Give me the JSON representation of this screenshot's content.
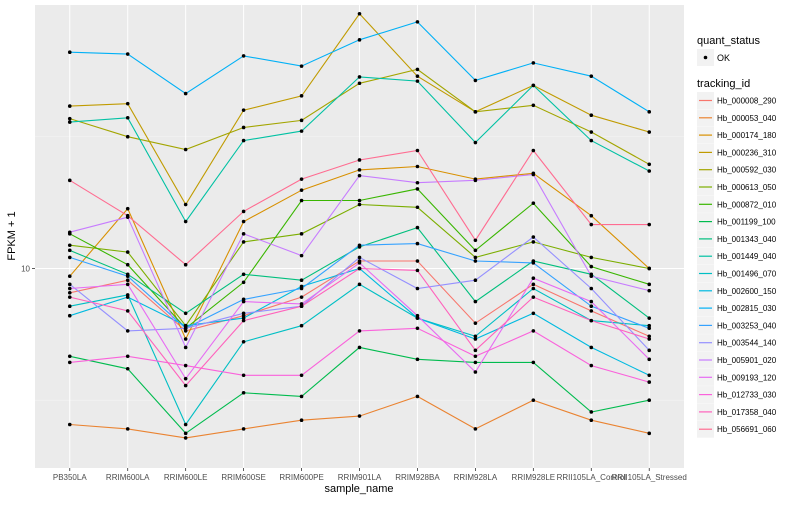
{
  "chart_data": {
    "type": "line",
    "title": "",
    "xlabel": "sample_name",
    "ylabel": "FPKM + 1",
    "y_scale": "log10",
    "ylim": [
      3.5,
      40
    ],
    "y_ticks": [
      10
    ],
    "y_tick_labels": [
      "10"
    ],
    "grid": true,
    "legend_position": "right",
    "categories": [
      "PB350LA",
      "RRIM600LA",
      "RRIM600LE",
      "RRIM600SE",
      "RRIM600PE",
      "RRIM901LA",
      "RRIM928BA",
      "RRIM928LA",
      "RRIM928LE",
      "RRII105LA_Control",
      "RRII105LA_Stressed"
    ],
    "shape_legend": {
      "title": "quant_status",
      "entries": [
        "OK"
      ]
    },
    "color_legend_title": "tracking_id",
    "series": [
      {
        "name": "Hb_000008_290",
        "color": "#F8766D",
        "values": [
          8.8,
          9.4,
          7.2,
          7.8,
          8.6,
          10.4,
          10.4,
          7.5,
          9.2,
          8.0,
          7.0
        ]
      },
      {
        "name": "Hb_000053_040",
        "color": "#EA8331",
        "values": [
          4.4,
          4.3,
          4.1,
          4.3,
          4.5,
          4.6,
          5.1,
          4.3,
          5.0,
          4.5,
          4.2
        ]
      },
      {
        "name": "Hb_000174_180",
        "color": "#D89000",
        "values": [
          9.6,
          13.7,
          6.9,
          12.8,
          15.1,
          16.8,
          17.1,
          16.0,
          16.5,
          13.2,
          10.0
        ]
      },
      {
        "name": "Hb_000236_310",
        "color": "#C09B00",
        "values": [
          23.5,
          23.8,
          14.0,
          23.0,
          24.8,
          38.2,
          27.5,
          22.8,
          26.2,
          22.4,
          20.5
        ]
      },
      {
        "name": "Hb_000592_030",
        "color": "#A3A500",
        "values": [
          22.0,
          20.0,
          18.7,
          21.0,
          21.8,
          26.5,
          28.5,
          22.8,
          23.6,
          20.5,
          17.3
        ]
      },
      {
        "name": "Hb_000613_050",
        "color": "#7CAE00",
        "values": [
          11.3,
          10.9,
          7.4,
          11.5,
          12.0,
          14.0,
          13.8,
          10.6,
          11.5,
          10.6,
          10.0
        ]
      },
      {
        "name": "Hb_000872_010",
        "color": "#39B600",
        "values": [
          12.0,
          10.2,
          7.3,
          9.3,
          14.3,
          14.3,
          15.2,
          11.0,
          14.1,
          10.1,
          9.2
        ]
      },
      {
        "name": "Hb_001199_100",
        "color": "#00BB4E",
        "values": [
          6.3,
          5.9,
          4.2,
          5.2,
          5.1,
          6.6,
          6.2,
          6.1,
          6.1,
          4.7,
          5.0
        ]
      },
      {
        "name": "Hb_001343_040",
        "color": "#00BF7D",
        "values": [
          11.0,
          9.7,
          7.9,
          9.7,
          9.4,
          11.2,
          12.4,
          8.4,
          10.4,
          9.7,
          7.7
        ]
      },
      {
        "name": "Hb_001449_040",
        "color": "#00C1A3",
        "values": [
          21.6,
          22.1,
          12.8,
          19.6,
          20.6,
          27.4,
          26.8,
          19.4,
          26.2,
          19.6,
          16.7
        ]
      },
      {
        "name": "Hb_001496_070",
        "color": "#00BFC4",
        "values": [
          8.2,
          8.7,
          4.4,
          6.8,
          7.4,
          9.2,
          7.7,
          7.0,
          9.0,
          7.6,
          7.4
        ]
      },
      {
        "name": "Hb_002600_150",
        "color": "#00BAE0",
        "values": [
          7.8,
          8.6,
          7.4,
          7.7,
          9.1,
          10.0,
          7.7,
          6.9,
          7.9,
          6.6,
          5.7
        ]
      },
      {
        "name": "Hb_002815_030",
        "color": "#00B0F6",
        "values": [
          31.2,
          30.9,
          25.1,
          30.6,
          29.0,
          33.3,
          36.6,
          26.9,
          29.5,
          27.5,
          22.8
        ]
      },
      {
        "name": "Hb_003253_040",
        "color": "#35A2FF",
        "values": [
          10.6,
          9.6,
          7.3,
          8.5,
          9.0,
          11.3,
          11.4,
          10.4,
          10.3,
          8.2,
          7.3
        ]
      },
      {
        "name": "Hb_003544_140",
        "color": "#9590FF",
        "values": [
          9.2,
          7.2,
          7.3,
          7.9,
          8.2,
          10.6,
          9.0,
          9.4,
          11.8,
          9.0,
          6.5
        ]
      },
      {
        "name": "Hb_005901_020",
        "color": "#C77CFF",
        "values": [
          12.1,
          13.1,
          6.6,
          12.0,
          10.7,
          16.3,
          15.7,
          15.9,
          16.4,
          9.6,
          8.9
        ]
      },
      {
        "name": "Hb_009193_120",
        "color": "#E76BF3",
        "values": [
          9.0,
          9.2,
          5.6,
          8.4,
          8.3,
          10.3,
          7.8,
          5.8,
          9.5,
          8.4,
          6.2
        ]
      },
      {
        "name": "Hb_012733_030",
        "color": "#FA62DB",
        "values": [
          6.1,
          6.3,
          6.0,
          5.7,
          5.7,
          7.2,
          7.3,
          6.3,
          7.2,
          6.0,
          5.5
        ]
      },
      {
        "name": "Hb_017358_040",
        "color": "#FF62BC",
        "values": [
          8.6,
          8.0,
          5.4,
          7.6,
          8.2,
          10.0,
          9.9,
          6.5,
          8.6,
          7.6,
          6.9
        ]
      },
      {
        "name": "Hb_056691_060",
        "color": "#FF6C91",
        "values": [
          15.9,
          13.2,
          10.2,
          13.5,
          16.0,
          17.7,
          18.6,
          11.6,
          18.6,
          12.6,
          12.6
        ]
      }
    ]
  }
}
